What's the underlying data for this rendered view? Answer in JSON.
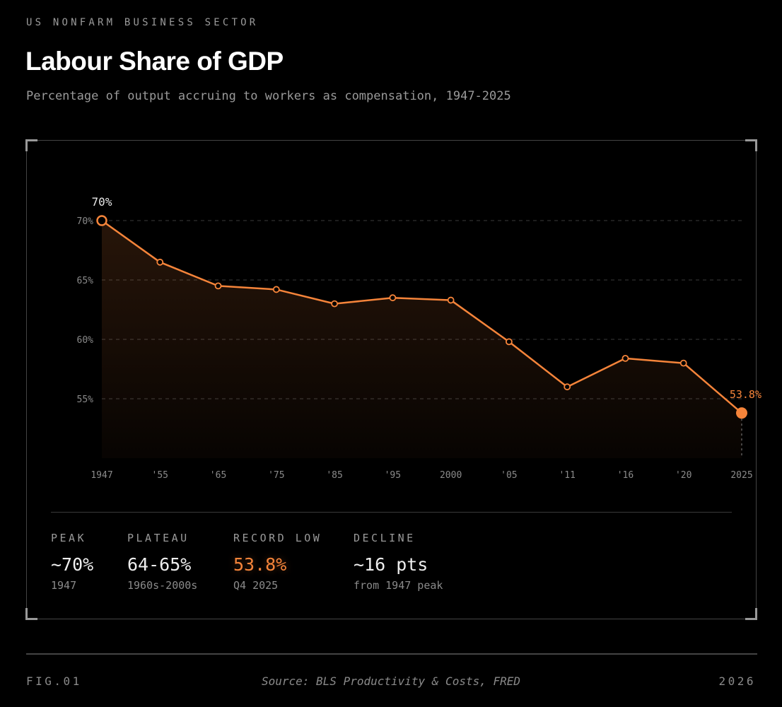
{
  "header": {
    "eyebrow": "US NONFARM BUSINESS SECTOR",
    "title": "Labour Share of GDP",
    "subtitle": "Percentage of output accruing to workers as compensation, 1947-2025"
  },
  "chart_data": {
    "type": "line",
    "categories": [
      "1947",
      "'55",
      "'65",
      "'75",
      "'85",
      "'95",
      "2000",
      "'05",
      "'11",
      "'16",
      "'20",
      "2025"
    ],
    "series": [
      {
        "values": [
          70.0,
          66.5,
          64.5,
          64.2,
          63.0,
          63.5,
          63.3,
          59.8,
          56.0,
          58.4,
          58.0,
          53.8
        ]
      }
    ],
    "yticks": [
      70,
      65,
      60,
      55
    ],
    "ytick_labels": [
      "70%",
      "65%",
      "60%",
      "55%"
    ],
    "ylim": [
      50,
      70
    ],
    "grid": "horizontal dashed",
    "annotations": {
      "start": "70%",
      "end": "53.8%"
    },
    "colors": {
      "line": "#f5843a",
      "grid": "#3a3a3a",
      "text": "#9a9a9a"
    }
  },
  "stats": [
    {
      "label": "PEAK",
      "value": "~70%",
      "sub": "1947"
    },
    {
      "label": "PLATEAU",
      "value": "64-65%",
      "sub": "1960s-2000s"
    },
    {
      "label": "RECORD LOW",
      "value": "53.8%",
      "sub": "Q4 2025"
    },
    {
      "label": "DECLINE",
      "value": "~16 pts",
      "sub": "from 1947 peak"
    }
  ],
  "footer": {
    "fig": "FIG.01",
    "source": "Source: BLS Productivity & Costs, FRED",
    "year": "2026"
  }
}
